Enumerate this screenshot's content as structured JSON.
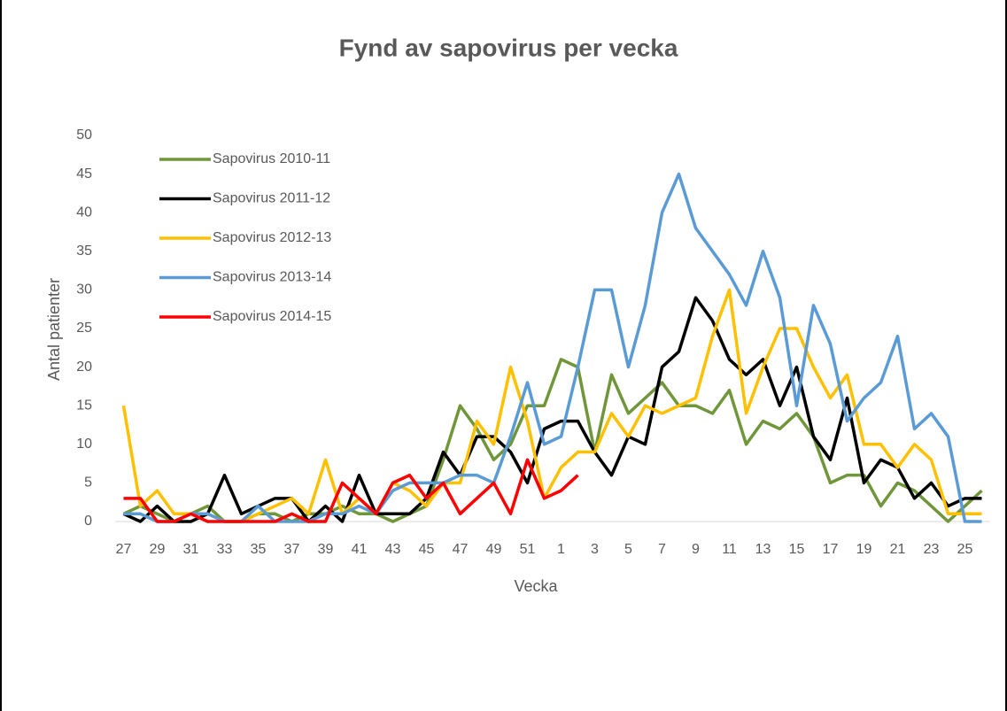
{
  "chart_data": {
    "type": "line",
    "title": "Fynd av sapovirus per vecka",
    "x_label": "Vecka",
    "y_label": "Antal patienter",
    "categories": [
      "27",
      null,
      "29",
      null,
      "31",
      null,
      "33",
      null,
      "35",
      null,
      "37",
      null,
      "39",
      null,
      "41",
      null,
      "43",
      null,
      "45",
      null,
      "47",
      null,
      "49",
      null,
      "51",
      null,
      "1",
      null,
      "3",
      null,
      "5",
      null,
      "7",
      null,
      "9",
      null,
      "11",
      null,
      "13",
      null,
      "15",
      null,
      "17",
      null,
      "19",
      null,
      "21",
      null,
      "23",
      null,
      "25",
      null
    ],
    "ylim": [
      0,
      50
    ],
    "yticks": [
      0,
      5,
      10,
      15,
      20,
      25,
      30,
      35,
      40,
      45,
      50
    ],
    "grid": false,
    "legend": "upper left",
    "series": [
      {
        "name": "Sapovirus 2010-11",
        "color": "#70963a",
        "values": [
          1,
          2,
          1,
          0,
          1,
          2,
          0,
          0,
          1,
          1,
          0,
          1,
          1,
          2,
          1,
          1,
          0,
          1,
          2,
          8,
          15,
          12,
          8,
          10,
          15,
          15,
          21,
          20,
          9,
          19,
          14,
          16,
          18,
          15,
          15,
          14,
          17,
          10,
          13,
          12,
          14,
          11,
          5,
          6,
          6,
          2,
          5,
          4,
          2,
          0,
          2,
          4
        ]
      },
      {
        "name": "Sapovirus 2011-12",
        "color": "#000000",
        "values": [
          1,
          0,
          2,
          0,
          0,
          1,
          6,
          1,
          2,
          3,
          3,
          0,
          2,
          0,
          6,
          1,
          1,
          1,
          3,
          9,
          6,
          11,
          11,
          9,
          5,
          12,
          13,
          13,
          9,
          6,
          11,
          10,
          20,
          22,
          29,
          26,
          21,
          19,
          21,
          15,
          20,
          11,
          8,
          16,
          5,
          8,
          7,
          3,
          5,
          2,
          3,
          3
        ]
      },
      {
        "name": "Sapovirus 2012-13",
        "color": "#ffc000",
        "values": [
          15,
          2,
          4,
          1,
          1,
          1,
          0,
          0,
          1,
          2,
          3,
          1,
          8,
          1,
          3,
          1,
          5,
          4,
          2,
          5,
          5,
          13,
          10,
          20,
          13,
          3,
          7,
          9,
          9,
          14,
          11,
          15,
          14,
          15,
          16,
          24,
          30,
          14,
          20,
          25,
          25,
          20,
          16,
          19,
          10,
          10,
          7,
          10,
          8,
          1,
          1,
          1
        ]
      },
      {
        "name": "Sapovirus 2013-14",
        "color": "#5b9bd5",
        "values": [
          1,
          1,
          0,
          0,
          1,
          1,
          0,
          0,
          2,
          0,
          0,
          0,
          1,
          1,
          2,
          1,
          4,
          5,
          5,
          5,
          6,
          6,
          5,
          11,
          18,
          10,
          11,
          20,
          30,
          30,
          20,
          28,
          40,
          45,
          38,
          35,
          32,
          28,
          35,
          29,
          15,
          28,
          23,
          13,
          16,
          18,
          24,
          12,
          14,
          11,
          0,
          0
        ]
      },
      {
        "name": "Sapovirus 2014-15",
        "color": "#ff0000",
        "values": [
          3,
          3,
          0,
          0,
          1,
          0,
          0,
          0,
          0,
          0,
          1,
          0,
          0,
          5,
          3,
          1,
          5,
          6,
          3,
          5,
          1,
          3,
          5,
          1,
          8,
          3,
          4,
          6,
          null,
          null,
          null,
          null,
          null,
          null,
          null,
          null,
          null,
          null,
          null,
          null,
          null,
          null,
          null,
          null,
          null,
          null,
          null,
          null,
          null,
          null,
          null,
          null
        ]
      }
    ]
  }
}
